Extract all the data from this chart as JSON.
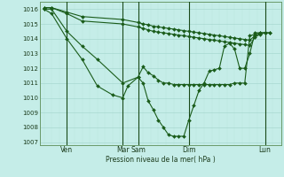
{
  "bg_color": "#c5ede8",
  "grid_major_color": "#a8d8d0",
  "grid_minor_color": "#b8e4de",
  "line_color": "#1a5c1a",
  "marker_color": "#1a5c1a",
  "ylabel_text": "Pression niveau de la mer( hPa )",
  "ylim": [
    1006.8,
    1016.5
  ],
  "yticks": [
    1007,
    1008,
    1009,
    1010,
    1011,
    1012,
    1013,
    1014,
    1015,
    1016
  ],
  "xlim": [
    0,
    168
  ],
  "vline_positions": [
    27,
    93,
    111,
    171,
    261
  ],
  "xtick_pos": [
    27,
    93,
    111,
    171,
    261
  ],
  "xtick_labels": [
    "Ven",
    "Mar",
    "Sam",
    "Dim",
    "Lun"
  ],
  "series": [
    {
      "x": [
        0,
        9,
        27,
        45,
        93,
        111,
        117,
        123,
        129,
        135,
        141,
        147,
        153,
        159,
        165,
        171,
        177,
        183,
        189,
        195,
        201,
        207,
        213,
        219,
        225,
        231,
        237,
        243,
        249,
        255,
        261,
        267
      ],
      "y": [
        1016.1,
        1016.1,
        1015.8,
        1015.5,
        1015.3,
        1015.1,
        1015.0,
        1014.95,
        1014.85,
        1014.8,
        1014.75,
        1014.7,
        1014.65,
        1014.6,
        1014.55,
        1014.5,
        1014.45,
        1014.4,
        1014.35,
        1014.3,
        1014.25,
        1014.2,
        1014.15,
        1014.1,
        1014.05,
        1014.0,
        1013.95,
        1013.9,
        1014.2,
        1014.35,
        1014.4,
        1014.4
      ]
    },
    {
      "x": [
        0,
        9,
        27,
        45,
        93,
        111,
        117,
        123,
        129,
        135,
        141,
        147,
        153,
        159,
        165,
        171,
        177,
        183,
        189,
        195,
        201,
        207,
        213,
        219,
        225,
        231,
        237,
        243,
        249,
        255,
        261,
        267
      ],
      "y": [
        1016.1,
        1016.1,
        1015.7,
        1015.2,
        1015.0,
        1014.8,
        1014.7,
        1014.6,
        1014.5,
        1014.45,
        1014.4,
        1014.35,
        1014.3,
        1014.25,
        1014.2,
        1014.15,
        1014.1,
        1014.05,
        1014.0,
        1013.95,
        1013.9,
        1013.85,
        1013.8,
        1013.75,
        1013.7,
        1013.65,
        1013.6,
        1013.55,
        1014.1,
        1014.3,
        1014.4,
        1014.4
      ]
    },
    {
      "x": [
        0,
        9,
        27,
        45,
        63,
        93,
        111,
        117,
        123,
        129,
        135,
        141,
        147,
        153,
        159,
        165,
        171,
        177,
        183,
        189,
        195,
        201,
        207,
        213,
        219,
        225,
        231,
        237,
        243,
        249,
        255,
        261
      ],
      "y": [
        1016.0,
        1016.0,
        1014.5,
        1013.5,
        1012.6,
        1011.0,
        1011.4,
        1012.1,
        1011.7,
        1011.5,
        1011.2,
        1011.0,
        1011.0,
        1010.9,
        1010.9,
        1010.9,
        1010.9,
        1010.9,
        1010.9,
        1010.9,
        1010.9,
        1010.9,
        1010.9,
        1010.9,
        1010.9,
        1011.0,
        1011.0,
        1011.0,
        1014.2,
        1014.3,
        1014.4,
        1014.4
      ]
    },
    {
      "x": [
        0,
        9,
        27,
        45,
        63,
        81,
        93,
        99,
        111,
        117,
        123,
        129,
        135,
        141,
        147,
        153,
        159,
        165,
        171,
        177,
        183,
        189,
        195,
        201,
        207,
        213,
        219,
        225,
        231,
        237,
        243,
        249,
        255,
        261
      ],
      "y": [
        1016.0,
        1015.7,
        1014.0,
        1012.6,
        1010.8,
        1010.2,
        1010.0,
        1010.8,
        1011.4,
        1011.0,
        1009.8,
        1009.2,
        1008.5,
        1008.0,
        1007.5,
        1007.4,
        1007.4,
        1007.4,
        1008.5,
        1009.5,
        1010.5,
        1011.0,
        1011.8,
        1011.9,
        1012.0,
        1013.5,
        1013.7,
        1013.3,
        1012.0,
        1012.0,
        1013.0,
        1014.4,
        1014.4,
        1014.4
      ]
    }
  ]
}
